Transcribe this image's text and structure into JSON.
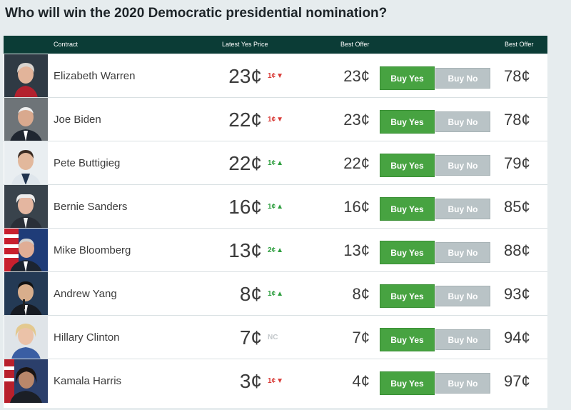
{
  "page": {
    "title": "Who will win the 2020 Democratic presidential nomination?"
  },
  "table": {
    "headers": {
      "contract": "Contract",
      "latest_yes_price": "Latest Yes Price",
      "best_offer_yes": "Best Offer",
      "best_offer_no": "Best Offer"
    },
    "rows": [
      {
        "name": "Elizabeth Warren",
        "price": "23¢",
        "change": "1¢",
        "direction": "down",
        "offer_yes": "23¢",
        "buy_yes": "Buy Yes",
        "buy_no": "Buy No",
        "offer_no": "78¢"
      },
      {
        "name": "Joe Biden",
        "price": "22¢",
        "change": "1¢",
        "direction": "down",
        "offer_yes": "23¢",
        "buy_yes": "Buy Yes",
        "buy_no": "Buy No",
        "offer_no": "78¢"
      },
      {
        "name": "Pete Buttigieg",
        "price": "22¢",
        "change": "1¢",
        "direction": "up",
        "offer_yes": "22¢",
        "buy_yes": "Buy Yes",
        "buy_no": "Buy No",
        "offer_no": "79¢"
      },
      {
        "name": "Bernie Sanders",
        "price": "16¢",
        "change": "1¢",
        "direction": "up",
        "offer_yes": "16¢",
        "buy_yes": "Buy Yes",
        "buy_no": "Buy No",
        "offer_no": "85¢"
      },
      {
        "name": "Mike Bloomberg",
        "price": "13¢",
        "change": "2¢",
        "direction": "up",
        "offer_yes": "13¢",
        "buy_yes": "Buy Yes",
        "buy_no": "Buy No",
        "offer_no": "88¢"
      },
      {
        "name": "Andrew Yang",
        "price": "8¢",
        "change": "1¢",
        "direction": "up",
        "offer_yes": "8¢",
        "buy_yes": "Buy Yes",
        "buy_no": "Buy No",
        "offer_no": "93¢"
      },
      {
        "name": "Hillary Clinton",
        "price": "7¢",
        "change": "NC",
        "direction": "none",
        "offer_yes": "7¢",
        "buy_yes": "Buy Yes",
        "buy_no": "Buy No",
        "offer_no": "94¢"
      },
      {
        "name": "Kamala Harris",
        "price": "3¢",
        "change": "1¢",
        "direction": "down",
        "offer_yes": "4¢",
        "buy_yes": "Buy Yes",
        "buy_no": "Buy No",
        "offer_no": "97¢"
      }
    ]
  },
  "colors": {
    "header_bg": "#0b3c36",
    "buy_yes": "#47a341",
    "buy_no": "#b9c3c6",
    "up": "#2e9e3f",
    "down": "#d83a36"
  }
}
